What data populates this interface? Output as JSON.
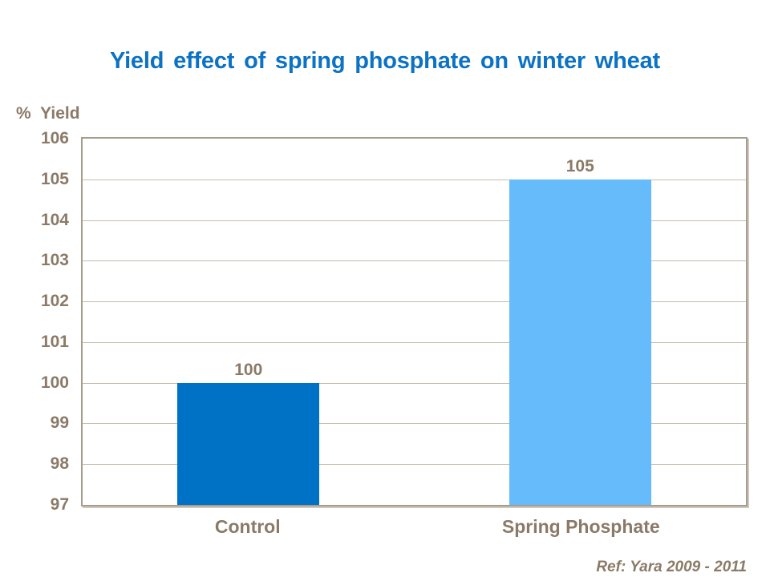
{
  "title": {
    "text": "Yield effect of spring phosphate on winter wheat",
    "color": "#0B72C4"
  },
  "axis": {
    "ylabel": "% Yield"
  },
  "footer": {
    "ref": "Ref: Yara 2009 - 2011"
  },
  "colors": {
    "title": "#0B72C4",
    "text": "#8B7A67",
    "border": "#A79C8E",
    "gridline": "#C6BDB1",
    "shadow": "#CFC8BC",
    "control_bar": "#0072C5",
    "spring_phosphate_bar": "#66BBFA"
  },
  "chart_data": {
    "type": "bar",
    "title": "Yield effect of spring phosphate on winter wheat",
    "categories": [
      "Control",
      "Spring Phosphate"
    ],
    "values": [
      100,
      105
    ],
    "data_labels": [
      "100",
      "105"
    ],
    "bar_colors": [
      "#0072C5",
      "#66BBFA"
    ],
    "xlabel": "",
    "ylabel": "% Yield",
    "ylim": [
      97,
      106
    ],
    "yticks": [
      97,
      98,
      99,
      100,
      101,
      102,
      103,
      104,
      105,
      106
    ],
    "grid": "horizontal",
    "legend": "none",
    "ref": "Ref: Yara 2009 - 2011"
  }
}
